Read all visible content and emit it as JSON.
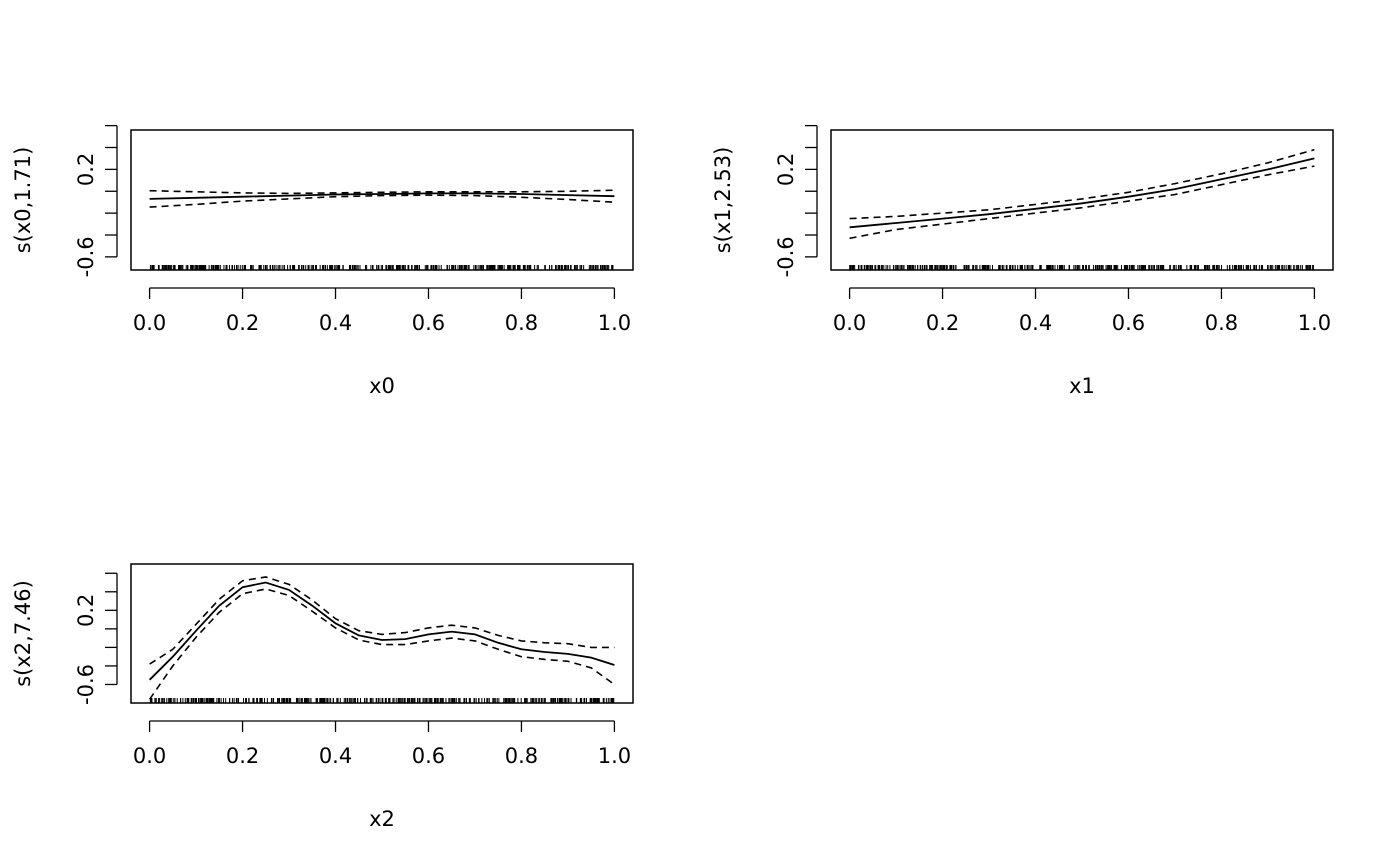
{
  "chart_data": [
    {
      "type": "line",
      "xlabel": "x0",
      "ylabel": "s(x0,1.71)",
      "xlim": [
        -0.04,
        1.04
      ],
      "ylim": [
        -0.72,
        0.56
      ],
      "x_ticks": [
        "0.0",
        "0.2",
        "0.4",
        "0.6",
        "0.8",
        "1.0"
      ],
      "y_ticks": [
        "-0.6",
        "0.2"
      ],
      "y_tick_values": [
        -0.6,
        -0.4,
        -0.2,
        0.0,
        0.2,
        0.4,
        0.6
      ],
      "y_labeled_values": [
        -0.6,
        0.2
      ],
      "rug": true,
      "x": [
        0,
        0.1,
        0.2,
        0.3,
        0.4,
        0.5,
        0.6,
        0.7,
        0.8,
        0.9,
        1.0
      ],
      "fit": [
        -0.07,
        -0.06,
        -0.05,
        -0.04,
        -0.03,
        -0.025,
        -0.02,
        -0.02,
        -0.025,
        -0.035,
        -0.045
      ],
      "upper": [
        0.005,
        -0.005,
        -0.015,
        -0.02,
        -0.015,
        -0.01,
        -0.005,
        -0.005,
        -0.005,
        0.0,
        0.01
      ],
      "lower": [
        -0.145,
        -0.12,
        -0.09,
        -0.07,
        -0.05,
        -0.04,
        -0.035,
        -0.04,
        -0.055,
        -0.075,
        -0.1
      ]
    },
    {
      "type": "line",
      "xlabel": "x1",
      "ylabel": "s(x1,2.53)",
      "xlim": [
        -0.04,
        1.04
      ],
      "ylim": [
        -0.72,
        0.56
      ],
      "x_ticks": [
        "0.0",
        "0.2",
        "0.4",
        "0.6",
        "0.8",
        "1.0"
      ],
      "y_ticks": [
        "-0.6",
        "0.2"
      ],
      "y_tick_values": [
        -0.6,
        -0.4,
        -0.2,
        0.0,
        0.2,
        0.4,
        0.6
      ],
      "y_labeled_values": [
        -0.6,
        0.2
      ],
      "rug": true,
      "x": [
        0,
        0.1,
        0.2,
        0.3,
        0.4,
        0.5,
        0.6,
        0.7,
        0.8,
        0.9,
        1.0
      ],
      "fit": [
        -0.33,
        -0.29,
        -0.25,
        -0.21,
        -0.16,
        -0.11,
        -0.05,
        0.02,
        0.11,
        0.2,
        0.3
      ],
      "upper": [
        -0.25,
        -0.23,
        -0.2,
        -0.17,
        -0.12,
        -0.07,
        -0.01,
        0.07,
        0.16,
        0.26,
        0.38
      ],
      "lower": [
        -0.43,
        -0.35,
        -0.3,
        -0.25,
        -0.2,
        -0.15,
        -0.09,
        -0.03,
        0.06,
        0.15,
        0.23
      ]
    },
    {
      "type": "line",
      "xlabel": "x2",
      "ylabel": "s(x2,7.46)",
      "xlim": [
        -0.04,
        1.04
      ],
      "ylim": [
        -0.8,
        0.7
      ],
      "x_ticks": [
        "0.0",
        "0.2",
        "0.4",
        "0.6",
        "0.8",
        "1.0"
      ],
      "y_ticks": [
        "-0.6",
        "0.2"
      ],
      "y_tick_values": [
        -0.6,
        -0.4,
        -0.2,
        0.0,
        0.2,
        0.4,
        0.6
      ],
      "y_labeled_values": [
        -0.6,
        0.2
      ],
      "rug": true,
      "x": [
        0,
        0.05,
        0.1,
        0.15,
        0.2,
        0.25,
        0.3,
        0.35,
        0.4,
        0.45,
        0.5,
        0.55,
        0.6,
        0.65,
        0.7,
        0.75,
        0.8,
        0.85,
        0.9,
        0.95,
        1.0
      ],
      "fit": [
        -0.55,
        -0.3,
        -0.02,
        0.25,
        0.45,
        0.5,
        0.42,
        0.25,
        0.06,
        -0.07,
        -0.12,
        -0.11,
        -0.06,
        -0.03,
        -0.06,
        -0.15,
        -0.22,
        -0.25,
        -0.27,
        -0.31,
        -0.39
      ],
      "upper": [
        -0.38,
        -0.22,
        0.05,
        0.32,
        0.52,
        0.56,
        0.48,
        0.31,
        0.11,
        -0.02,
        -0.06,
        -0.04,
        0.01,
        0.04,
        0.01,
        -0.07,
        -0.13,
        -0.15,
        -0.16,
        -0.2,
        -0.2
      ],
      "lower": [
        -0.76,
        -0.4,
        -0.09,
        0.18,
        0.38,
        0.43,
        0.36,
        0.19,
        0.01,
        -0.12,
        -0.17,
        -0.17,
        -0.13,
        -0.1,
        -0.13,
        -0.22,
        -0.3,
        -0.33,
        -0.35,
        -0.42,
        -0.6
      ]
    }
  ]
}
